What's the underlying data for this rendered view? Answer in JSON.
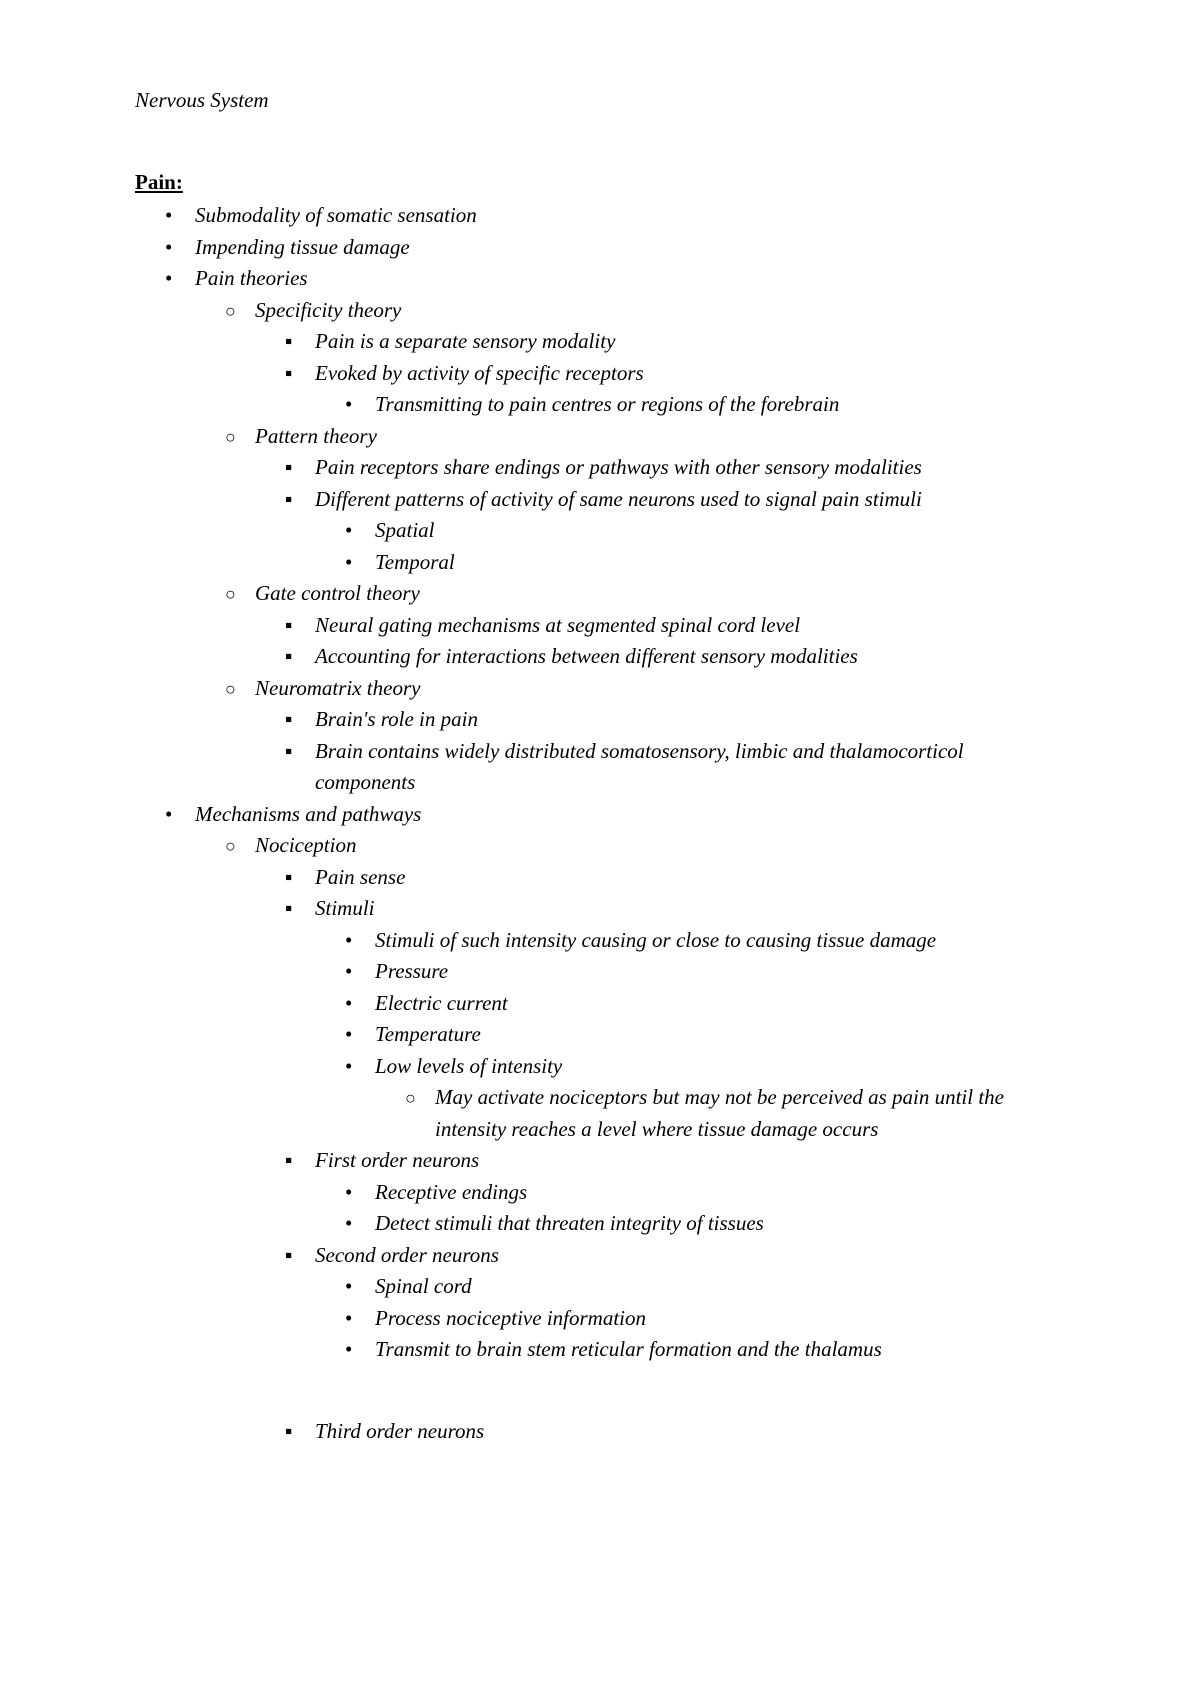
{
  "header": "Nervous System",
  "section_title": "Pain:",
  "l1_0": "Submodality of somatic sensation",
  "l1_1": "Impending tissue damage",
  "l1_2": "Pain theories",
  "l2_spec": "Specificity theory",
  "l3_spec_0": "Pain is a separate sensory modality",
  "l3_spec_1": "Evoked by activity of specific receptors",
  "l4_spec_0": "Transmitting to pain centres or regions of the forebrain",
  "l2_pat": "Pattern theory",
  "l3_pat_0": "Pain receptors share endings or pathways with other sensory modalities",
  "l3_pat_1": "Different patterns of activity of same neurons used to signal pain stimuli",
  "l4_pat_0": "Spatial",
  "l4_pat_1": "Temporal",
  "l2_gate": "Gate control theory",
  "l3_gate_0": "Neural gating mechanisms at segmented spinal cord level",
  "l3_gate_1": "Accounting for interactions between different sensory modalities",
  "l2_neuro": "Neuromatrix theory",
  "l3_neuro_0": "Brain's role in pain",
  "l3_neuro_1": "Brain contains widely distributed somatosensory, limbic and thalamocorticol components",
  "l1_3": "Mechanisms and pathways",
  "l2_noci": "Nociception",
  "l3_noci_0": "Pain sense",
  "l3_noci_1": "Stimuli",
  "l4_stim_0": "Stimuli of such intensity causing or close to causing tissue damage",
  "l4_stim_1": "Pressure",
  "l4_stim_2": "Electric current",
  "l4_stim_3": "Temperature",
  "l4_stim_4": "Low levels of intensity",
  "l5_stim_0": "May activate nociceptors but may not be perceived as pain until the intensity reaches a level where tissue damage occurs",
  "l3_first": "First order neurons",
  "l4_first_0": "Receptive endings",
  "l4_first_1": "Detect stimuli that threaten integrity of tissues",
  "l3_second": "Second order neurons",
  "l4_second_0": "Spinal cord",
  "l4_second_1": "Process nociceptive information",
  "l4_second_2": "Transmit to brain stem reticular formation and the thalamus",
  "l3_third": "Third order neurons"
}
